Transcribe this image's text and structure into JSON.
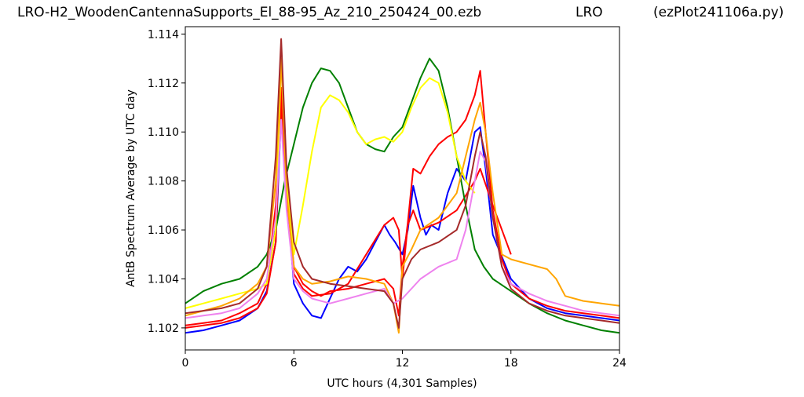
{
  "header": {
    "title_left": "LRO-H2_WoodenCantennaSupports_El_88-95_Az_210_250424_00.ezb",
    "title_center": "LRO",
    "title_right": "(ezPlot241106a.py)"
  },
  "chart_data": {
    "type": "line",
    "xlabel": "UTC hours  (4,301 Samples)",
    "ylabel": "AntB Spectrum Average by UTC day",
    "xlim": [
      0,
      24
    ],
    "ylim": [
      1.1011,
      1.1143
    ],
    "x_ticks": [
      0,
      6,
      12,
      18,
      24
    ],
    "x_tick_labels": [
      "0",
      "6",
      "12",
      "18",
      "24"
    ],
    "y_ticks": [
      1.102,
      1.104,
      1.106,
      1.108,
      1.11,
      1.112,
      1.114
    ],
    "y_tick_labels": [
      "1.102",
      "1.104",
      "1.106",
      "1.108",
      "1.110",
      "1.112",
      "1.114"
    ],
    "grid": false,
    "series": [
      {
        "color": "#0000ff",
        "x": [
          0,
          1,
          2,
          3,
          4,
          4.5,
          5,
          5.3,
          5.6,
          6,
          6.5,
          7,
          7.5,
          8,
          8.5,
          9,
          9.5,
          10,
          10.5,
          11,
          11.3,
          11.6,
          12,
          12.3,
          12.6,
          13,
          13.3,
          13.6,
          14,
          14.5,
          15,
          15.5,
          16,
          16.3,
          16.6,
          17,
          18,
          19,
          20,
          21,
          22,
          23,
          24
        ],
        "y": [
          1.1018,
          1.1019,
          1.1021,
          1.1023,
          1.1028,
          1.1035,
          1.1055,
          1.1108,
          1.1075,
          1.1038,
          1.103,
          1.1025,
          1.1024,
          1.1032,
          1.104,
          1.1045,
          1.1043,
          1.1048,
          1.1055,
          1.1062,
          1.1058,
          1.1055,
          1.105,
          1.106,
          1.1078,
          1.1065,
          1.1058,
          1.1062,
          1.106,
          1.1075,
          1.1085,
          1.108,
          1.11,
          1.1102,
          1.1085,
          1.1058,
          1.104,
          1.1032,
          1.1028,
          1.1026,
          1.1025,
          1.1024,
          1.1023
        ]
      },
      {
        "color": "#ff0000",
        "x": [
          0,
          1,
          2,
          3,
          4,
          4.5,
          5,
          5.3,
          5.6,
          6,
          6.5,
          7,
          7.5,
          8,
          9,
          10,
          11,
          11.5,
          11.8,
          12,
          12.3,
          12.6,
          13,
          13.5,
          14,
          14.5,
          15,
          15.5,
          16,
          16.3,
          16.6,
          17,
          17.5,
          18,
          19,
          20,
          21,
          22,
          23,
          24
        ],
        "y": [
          1.102,
          1.1021,
          1.1022,
          1.1024,
          1.1028,
          1.1034,
          1.1055,
          1.1118,
          1.1078,
          1.1045,
          1.1038,
          1.1035,
          1.1033,
          1.1035,
          1.1036,
          1.1038,
          1.104,
          1.1036,
          1.1025,
          1.1045,
          1.1063,
          1.1085,
          1.1083,
          1.109,
          1.1095,
          1.1098,
          1.11,
          1.1105,
          1.1115,
          1.1125,
          1.11,
          1.1068,
          1.1048,
          1.1038,
          1.1032,
          1.1029,
          1.1027,
          1.1026,
          1.1025,
          1.1024
        ]
      },
      {
        "color": "#ff0000",
        "x": [
          0,
          1,
          2,
          3,
          4,
          4.5,
          5,
          5.3,
          5.6,
          6,
          6.5,
          7,
          8,
          9,
          10,
          11,
          11.5,
          11.8,
          12,
          12.3,
          12.6,
          13,
          14,
          15,
          16,
          16.3,
          17,
          18
        ],
        "y": [
          1.1021,
          1.1022,
          1.1023,
          1.1026,
          1.103,
          1.1038,
          1.107,
          1.1112,
          1.107,
          1.1042,
          1.1036,
          1.1033,
          1.1034,
          1.1038,
          1.105,
          1.1062,
          1.1065,
          1.106,
          1.104,
          1.1062,
          1.1068,
          1.106,
          1.1063,
          1.1068,
          1.108,
          1.1085,
          1.107,
          1.105
        ]
      },
      {
        "color": "#008000",
        "x": [
          0,
          1,
          2,
          3,
          4,
          4.5,
          5,
          5.5,
          6,
          6.5,
          7,
          7.5,
          8,
          8.5,
          9,
          9.5,
          10,
          10.5,
          11,
          11.5,
          12,
          12.5,
          13,
          13.5,
          14,
          14.5,
          15,
          15.5,
          16,
          16.5,
          17,
          18,
          19,
          20,
          21,
          22,
          23,
          24
        ],
        "y": [
          1.103,
          1.1035,
          1.1038,
          1.104,
          1.1045,
          1.105,
          1.106,
          1.108,
          1.1095,
          1.111,
          1.112,
          1.1126,
          1.1125,
          1.112,
          1.111,
          1.11,
          1.1095,
          1.1093,
          1.1092,
          1.1098,
          1.1102,
          1.1112,
          1.1122,
          1.113,
          1.1125,
          1.111,
          1.109,
          1.107,
          1.1052,
          1.1045,
          1.104,
          1.1035,
          1.103,
          1.1026,
          1.1023,
          1.1021,
          1.1019,
          1.1018
        ]
      },
      {
        "color": "#ffff00",
        "x": [
          0,
          1,
          2,
          3,
          4,
          4.5,
          5,
          5.3,
          5.6,
          6,
          6.5,
          7,
          7.5,
          8,
          8.5,
          9,
          9.5,
          10,
          10.5,
          11,
          11.5,
          12,
          12.5,
          13,
          13.5,
          14,
          14.5,
          15,
          15.5,
          16
        ],
        "y": [
          1.1028,
          1.103,
          1.1032,
          1.1034,
          1.1036,
          1.1038,
          1.106,
          1.113,
          1.108,
          1.105,
          1.107,
          1.1092,
          1.111,
          1.1115,
          1.1113,
          1.1108,
          1.11,
          1.1095,
          1.1097,
          1.1098,
          1.1096,
          1.11,
          1.111,
          1.1118,
          1.1122,
          1.112,
          1.1108,
          1.109,
          1.108,
          1.1075
        ]
      },
      {
        "color": "#ffa500",
        "x": [
          0,
          1,
          2,
          3,
          4,
          4.5,
          5,
          5.3,
          5.6,
          6,
          6.5,
          7,
          8,
          9,
          10,
          11,
          11.5,
          11.8,
          12,
          12.5,
          13,
          14,
          15,
          15.5,
          16,
          16.3,
          16.6,
          17,
          17.5,
          18,
          19,
          20,
          20.5,
          21,
          22,
          23,
          24
        ],
        "y": [
          1.1025,
          1.1027,
          1.1029,
          1.1032,
          1.1038,
          1.1045,
          1.108,
          1.113,
          1.1075,
          1.1045,
          1.104,
          1.1038,
          1.1039,
          1.1041,
          1.104,
          1.1038,
          1.103,
          1.1018,
          1.1045,
          1.1052,
          1.106,
          1.1065,
          1.1075,
          1.109,
          1.1105,
          1.1112,
          1.11,
          1.1075,
          1.105,
          1.1048,
          1.1046,
          1.1044,
          1.104,
          1.1033,
          1.1031,
          1.103,
          1.1029
        ]
      },
      {
        "color": "#ee82ee",
        "x": [
          0,
          1,
          2,
          3,
          4,
          4.5,
          5,
          5.3,
          5.6,
          6,
          6.5,
          7,
          8,
          9,
          10,
          11,
          11.5,
          12,
          12.5,
          13,
          14,
          15,
          15.5,
          16,
          16.3,
          16.6,
          17,
          17.5,
          18,
          19,
          20,
          21,
          22,
          23,
          24
        ],
        "y": [
          1.1024,
          1.1025,
          1.1026,
          1.1028,
          1.1034,
          1.104,
          1.1065,
          1.1105,
          1.1068,
          1.104,
          1.1035,
          1.1032,
          1.103,
          1.1032,
          1.1034,
          1.1036,
          1.103,
          1.1032,
          1.1036,
          1.104,
          1.1045,
          1.1048,
          1.106,
          1.108,
          1.1092,
          1.1088,
          1.1065,
          1.1045,
          1.1038,
          1.1034,
          1.1031,
          1.1029,
          1.1027,
          1.1026,
          1.1025
        ]
      },
      {
        "color": "#a52a2a",
        "x": [
          0,
          1,
          2,
          3,
          4,
          4.5,
          5,
          5.3,
          5.6,
          6,
          6.5,
          7,
          8,
          9,
          10,
          11,
          11.5,
          11.8,
          12,
          12.5,
          13,
          14,
          15,
          15.5,
          16,
          16.3,
          16.6,
          17,
          17.5,
          18,
          19,
          20,
          21,
          22,
          23,
          24
        ],
        "y": [
          1.1026,
          1.1027,
          1.1028,
          1.103,
          1.1036,
          1.1045,
          1.109,
          1.1138,
          1.1085,
          1.1055,
          1.1045,
          1.104,
          1.1038,
          1.1037,
          1.1036,
          1.1035,
          1.103,
          1.102,
          1.104,
          1.1048,
          1.1052,
          1.1055,
          1.106,
          1.107,
          1.109,
          1.11,
          1.109,
          1.1065,
          1.1045,
          1.1036,
          1.103,
          1.1027,
          1.1025,
          1.1024,
          1.1023,
          1.1022
        ]
      }
    ]
  }
}
